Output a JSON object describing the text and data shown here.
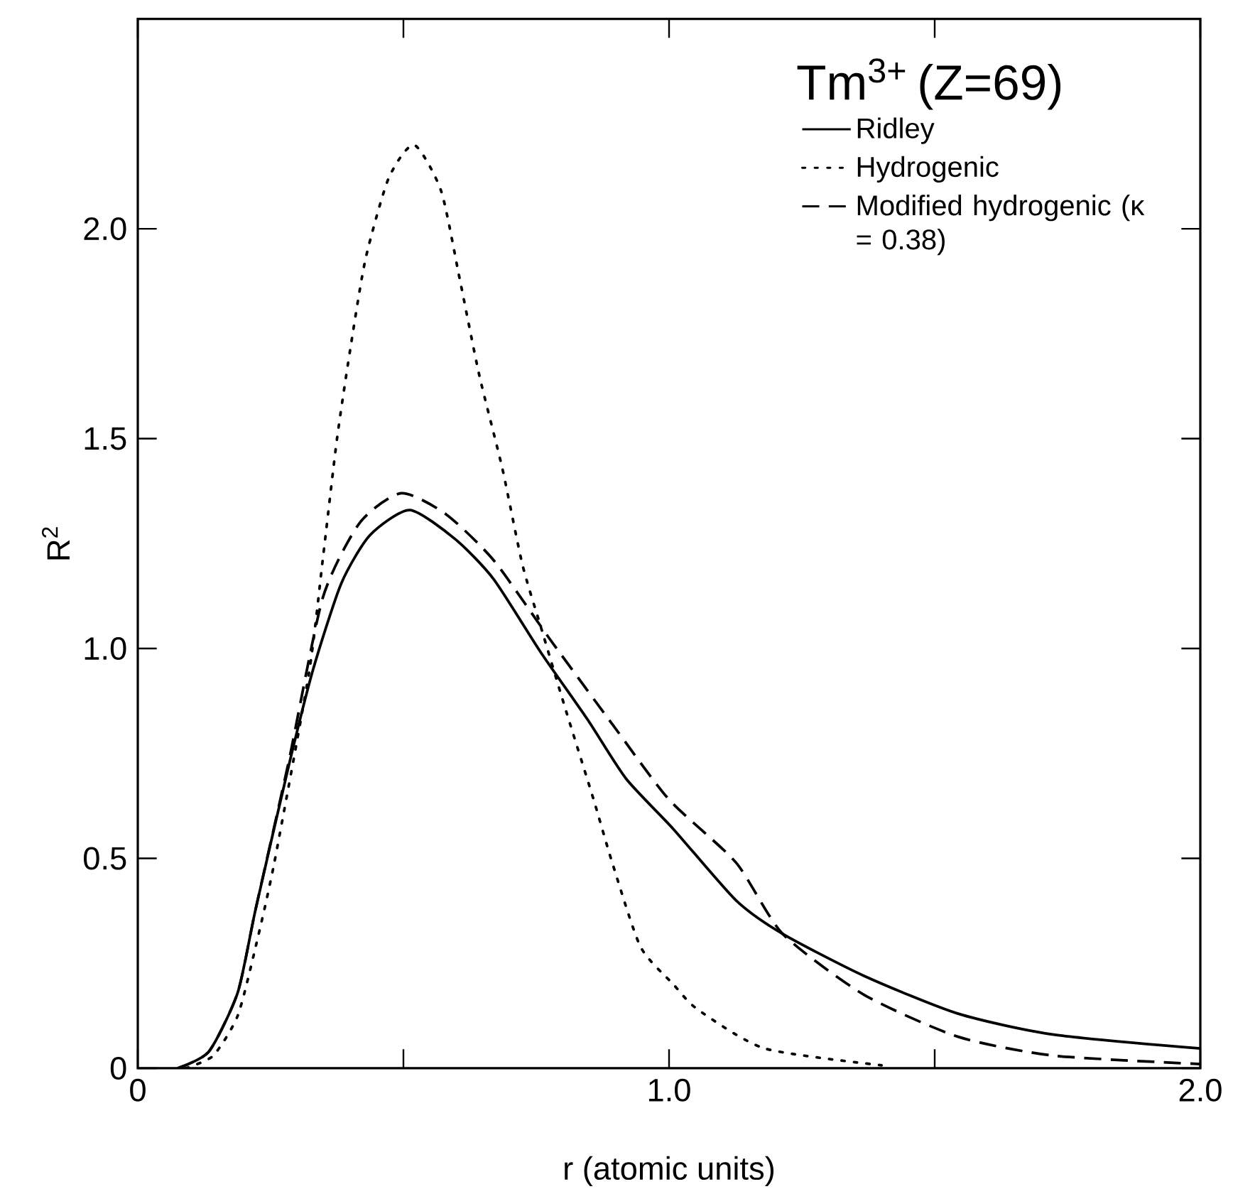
{
  "chart_data": {
    "type": "line",
    "xlabel": "r (atomic units)",
    "ylabel": "R$^{2}$",
    "legend_title": "Tm$^{3+}$ (Z=69)",
    "xlim": [
      0,
      2
    ],
    "ylim": [
      0,
      2.5
    ],
    "xticks": [
      0,
      {
        "value": 0.5,
        "label": null
      },
      {
        "value": 1,
        "label": "1.0"
      },
      {
        "value": 1.5,
        "label": null
      },
      {
        "value": 2,
        "label": "2.0"
      }
    ],
    "yticks": [
      0,
      0.5,
      {
        "value": 1,
        "label": "1.0"
      },
      {
        "value": 1.5,
        "label": "1.5"
      },
      {
        "value": 2,
        "label": "2.0"
      }
    ],
    "grid": false,
    "legend": "top right",
    "marker": "none",
    "series": [
      {
        "name": "Ridley",
        "color": "#000000",
        "line_style": "solid",
        "x": [
          0.075,
          0.134,
          0.188,
          0.222,
          0.284,
          0.33,
          0.383,
          0.437,
          0.512,
          0.598,
          0.67,
          0.759,
          0.847,
          0.919,
          1.008,
          1.126,
          1.214,
          1.367,
          1.544,
          1.724,
          2.0
        ],
        "values": [
          0,
          0.04,
          0.18,
          0.38,
          0.72,
          0.95,
          1.155,
          1.27,
          1.33,
          1.26,
          1.165,
          0.99,
          0.83,
          0.69,
          0.57,
          0.4,
          0.32,
          0.22,
          0.13,
          0.08,
          0.047
        ]
      },
      {
        "name": "Hydrogenic",
        "color": "#000000",
        "line_style": "dotted",
        "x": [
          0.09,
          0.142,
          0.188,
          0.222,
          0.257,
          0.322,
          0.348,
          0.375,
          0.402,
          0.429,
          0.472,
          0.52,
          0.571,
          0.606,
          0.643,
          0.686,
          0.724,
          0.759,
          0.804,
          0.858,
          0.893,
          0.946,
          1.008,
          1.054,
          1.18,
          1.4
        ],
        "values": [
          0,
          0.03,
          0.125,
          0.29,
          0.49,
          0.94,
          1.21,
          1.5,
          1.73,
          1.93,
          2.12,
          2.2,
          2.09,
          1.88,
          1.65,
          1.43,
          1.2,
          1.05,
          0.86,
          0.64,
          0.49,
          0.29,
          0.2,
          0.14,
          0.047,
          0.007
        ]
      },
      {
        "name": "Modified hydrogenic (κ = 0.38)",
        "color": "#000000",
        "line_style": "dashed",
        "x": [
          0.075,
          0.134,
          0.188,
          0.222,
          0.284,
          0.348,
          0.418,
          0.496,
          0.58,
          0.67,
          0.777,
          0.893,
          1.0,
          1.126,
          1.214,
          1.367,
          1.544,
          1.724,
          2.0
        ],
        "values": [
          0,
          0.04,
          0.18,
          0.38,
          0.73,
          1.12,
          1.3,
          1.37,
          1.32,
          1.21,
          1.02,
          0.82,
          0.64,
          0.49,
          0.32,
          0.175,
          0.075,
          0.03,
          0.01
        ]
      }
    ]
  }
}
